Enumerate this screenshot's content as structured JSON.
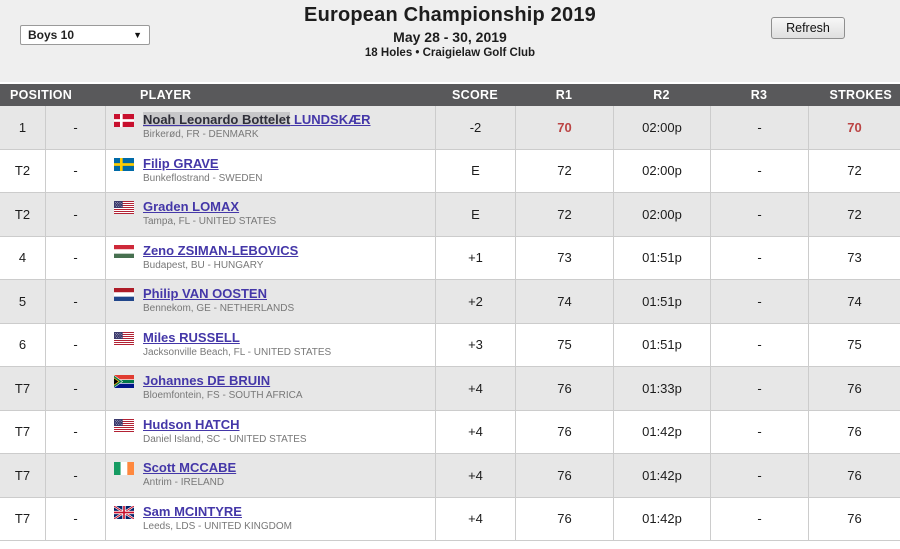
{
  "topbar": {
    "category_select": {
      "value": "Boys 10"
    },
    "title": "European Championship 2019",
    "dates": "May 28 - 30, 2019",
    "venue": "18 Holes • Craigielaw Golf Club",
    "refresh_label": "Refresh"
  },
  "colors": {
    "top_band_bg": "#efefef",
    "header_bg": "#59595b",
    "row_alt_bg": "#e7e7e7",
    "link": "#4437a8",
    "leader_score_red": "#bb4444"
  },
  "table": {
    "columns": {
      "position": "POSITION",
      "player": "PLAYER",
      "score": "SCORE",
      "r1": "R1",
      "r2": "R2",
      "r3": "R3",
      "strokes": "STROKES"
    },
    "rows": [
      {
        "position": "1",
        "move": "-",
        "flag": "denmark",
        "name": "Noah Leonardo Bottelet LUNDSKÆR",
        "selected_text": "Noah Leonardo Bottelet",
        "location": "Birkerød, FR - DENMARK",
        "score": "-2",
        "r1": "70",
        "r2": "02:00p",
        "r3": "-",
        "strokes": "70",
        "red": true
      },
      {
        "position": "T2",
        "move": "-",
        "flag": "sweden",
        "name": "Filip GRAVE",
        "location": "Bunkeflostrand - SWEDEN",
        "score": "E",
        "r1": "72",
        "r2": "02:00p",
        "r3": "-",
        "strokes": "72",
        "red": false
      },
      {
        "position": "T2",
        "move": "-",
        "flag": "united-states",
        "name": "Graden LOMAX",
        "location": "Tampa, FL - UNITED STATES",
        "score": "E",
        "r1": "72",
        "r2": "02:00p",
        "r3": "-",
        "strokes": "72",
        "red": false
      },
      {
        "position": "4",
        "move": "-",
        "flag": "hungary",
        "name": "Zeno ZSIMAN-LEBOVICS",
        "location": "Budapest, BU - HUNGARY",
        "score": "+1",
        "r1": "73",
        "r2": "01:51p",
        "r3": "-",
        "strokes": "73",
        "red": false
      },
      {
        "position": "5",
        "move": "-",
        "flag": "netherlands",
        "name": "Philip VAN OOSTEN",
        "location": "Bennekom, GE - NETHERLANDS",
        "score": "+2",
        "r1": "74",
        "r2": "01:51p",
        "r3": "-",
        "strokes": "74",
        "red": false
      },
      {
        "position": "6",
        "move": "-",
        "flag": "united-states",
        "name": "Miles RUSSELL",
        "location": "Jacksonville Beach, FL - UNITED STATES",
        "score": "+3",
        "r1": "75",
        "r2": "01:51p",
        "r3": "-",
        "strokes": "75",
        "red": false
      },
      {
        "position": "T7",
        "move": "-",
        "flag": "south-africa",
        "name": "Johannes DE BRUIN",
        "location": "Bloemfontein, FS - SOUTH AFRICA",
        "score": "+4",
        "r1": "76",
        "r2": "01:33p",
        "r3": "-",
        "strokes": "76",
        "red": false
      },
      {
        "position": "T7",
        "move": "-",
        "flag": "united-states",
        "name": "Hudson HATCH",
        "location": "Daniel Island, SC - UNITED STATES",
        "score": "+4",
        "r1": "76",
        "r2": "01:42p",
        "r3": "-",
        "strokes": "76",
        "red": false
      },
      {
        "position": "T7",
        "move": "-",
        "flag": "ireland",
        "name": "Scott MCCABE",
        "location": "Antrim - IRELAND",
        "score": "+4",
        "r1": "76",
        "r2": "01:42p",
        "r3": "-",
        "strokes": "76",
        "red": false
      },
      {
        "position": "T7",
        "move": "-",
        "flag": "united-kingdom",
        "name": "Sam MCINTYRE",
        "location": "Leeds, LDS - UNITED KINGDOM",
        "score": "+4",
        "r1": "76",
        "r2": "01:42p",
        "r3": "-",
        "strokes": "76",
        "red": false
      }
    ]
  }
}
